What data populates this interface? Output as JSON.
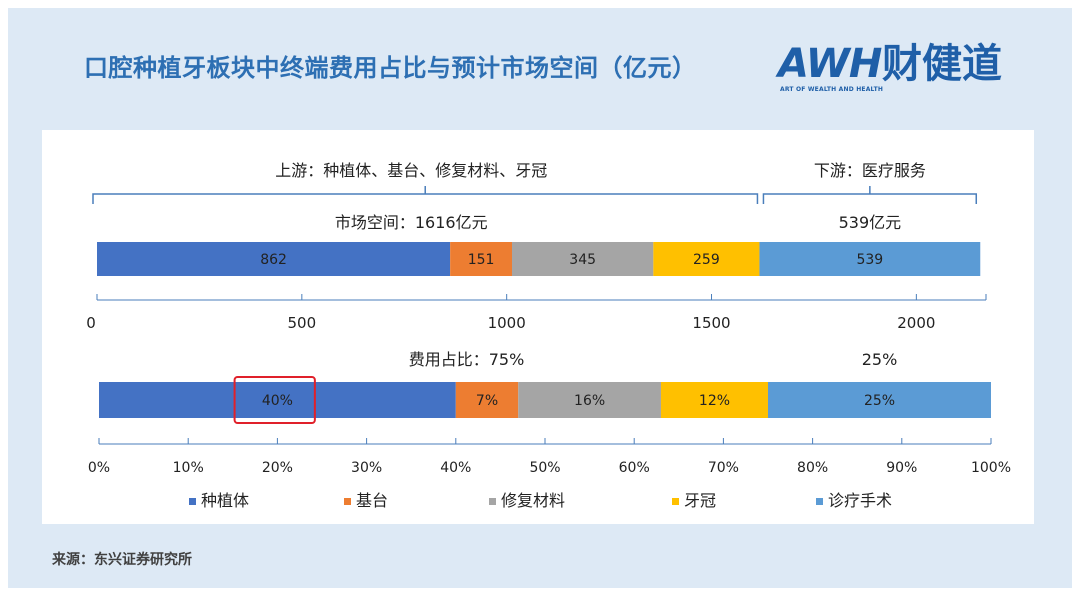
{
  "header": {
    "title": "口腔种植牙板块中终端费用占比与预计市场空间（亿元）",
    "logo_text": "AWH财健道",
    "logo_latin": "AWH",
    "logo_cn": "财健道",
    "logo_sub": "ART OF WEALTH AND HEALTH"
  },
  "footer": {
    "source": "来源：东兴证券研究所"
  },
  "colors": {
    "title": "#2d6fb3",
    "bracket": "#4a7ebb",
    "highlight": "#e0202a"
  },
  "chart_data": [
    {
      "type": "bar",
      "orientation": "horizontal-stacked",
      "annotations": {
        "upstream_label": "上游：种植体、基台、修复材料、牙冠",
        "downstream_label": "下游：医疗服务",
        "upstream_total": "市场空间：1616亿元",
        "downstream_total": "539亿元"
      },
      "xlim": [
        0,
        2170
      ],
      "xticks": [
        0,
        500,
        1000,
        1500,
        2000
      ],
      "series": [
        {
          "name": "种植体",
          "value": 862,
          "label": "862",
          "color": "#4472c4"
        },
        {
          "name": "基台",
          "value": 151,
          "label": "151",
          "color": "#ed7d31"
        },
        {
          "name": "修复材料",
          "value": 345,
          "label": "345",
          "color": "#a5a5a5"
        },
        {
          "name": "牙冠",
          "value": 259,
          "label": "259",
          "color": "#ffc000"
        },
        {
          "name": "诊疗手术",
          "value": 539,
          "label": "539",
          "color": "#5b9bd5"
        }
      ]
    },
    {
      "type": "bar",
      "orientation": "horizontal-stacked",
      "annotations": {
        "upstream_share": "费用占比：75%",
        "downstream_share": "25%"
      },
      "xlim": [
        0,
        100
      ],
      "xticks": [
        "0%",
        "10%",
        "20%",
        "30%",
        "40%",
        "50%",
        "60%",
        "70%",
        "80%",
        "90%",
        "100%"
      ],
      "series": [
        {
          "name": "种植体",
          "value": 40,
          "label": "40%",
          "color": "#4472c4"
        },
        {
          "name": "基台",
          "value": 7,
          "label": "7%",
          "color": "#ed7d31"
        },
        {
          "name": "修复材料",
          "value": 16,
          "label": "16%",
          "color": "#a5a5a5"
        },
        {
          "name": "牙冠",
          "value": 12,
          "label": "12%",
          "color": "#ffc000"
        },
        {
          "name": "诊疗手术",
          "value": 25,
          "label": "25%",
          "color": "#5b9bd5"
        }
      ],
      "highlighted_label": "40%"
    }
  ],
  "legend": {
    "placement": "bottom",
    "items": [
      {
        "name": "种植体",
        "color": "#4472c4"
      },
      {
        "name": "基台",
        "color": "#ed7d31"
      },
      {
        "name": "修复材料",
        "color": "#a5a5a5"
      },
      {
        "name": "牙冠",
        "color": "#ffc000"
      },
      {
        "name": "诊疗手术",
        "color": "#5b9bd5"
      }
    ]
  }
}
